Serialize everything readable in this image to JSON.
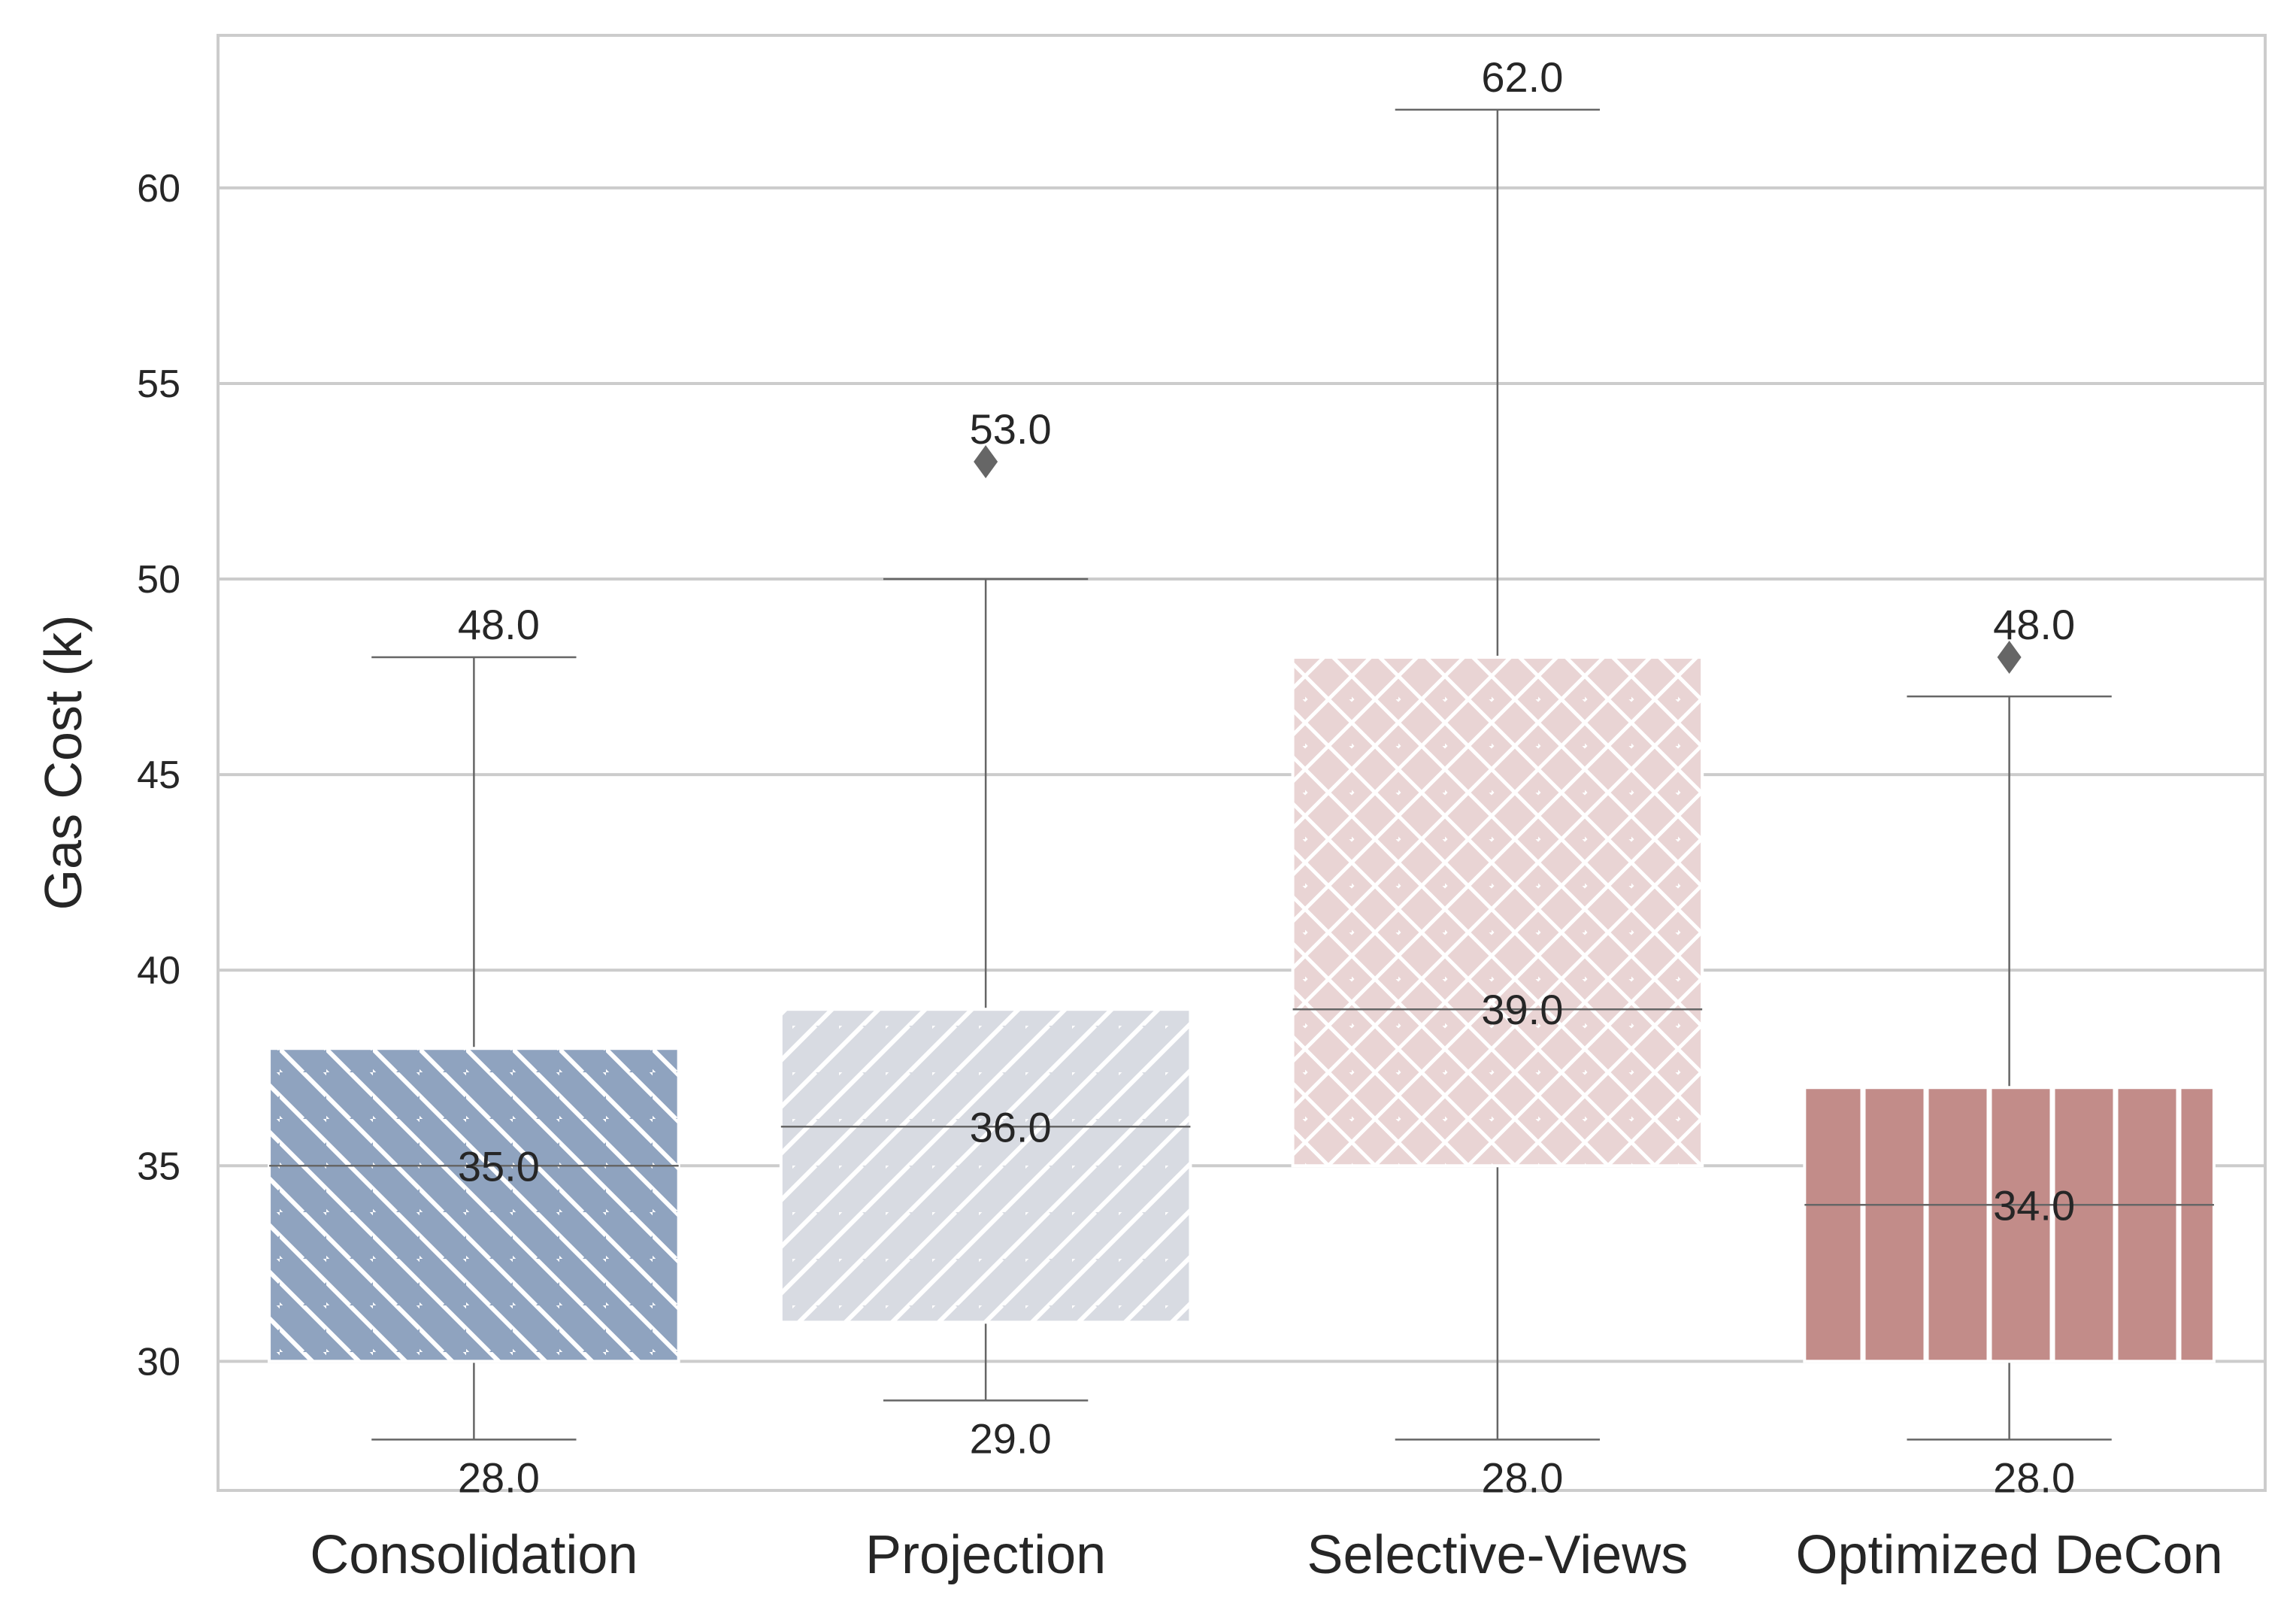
{
  "chart_data": {
    "type": "box",
    "title": "",
    "xlabel": "",
    "ylabel": "Gas Cost (k)",
    "ylim": [
      26.7,
      63.9
    ],
    "yticks": [
      30,
      35,
      40,
      45,
      50,
      55,
      60
    ],
    "grid": "horizontal",
    "legend": "none",
    "categories": [
      "Consolidation",
      "Projection",
      "Selective-Views",
      "Optimized DeCon"
    ],
    "boxes": [
      {
        "category": "Consolidation",
        "whisker_low": 28.0,
        "q1": 30.0,
        "median": 35.0,
        "q3": 38.0,
        "whisker_high": 48.0,
        "outliers": [],
        "labels": {
          "top": "48.0",
          "median": "35.0",
          "bottom": "28.0"
        },
        "color": "#8fa3bf",
        "hatch": "backslash"
      },
      {
        "category": "Projection",
        "whisker_low": 29.0,
        "q1": 31.0,
        "median": 36.0,
        "q3": 39.0,
        "whisker_high": 50.0,
        "outliers": [
          53.0
        ],
        "labels": {
          "top": "53.0",
          "median": "36.0",
          "bottom": "29.0"
        },
        "color": "#d8dbe2",
        "hatch": "slash"
      },
      {
        "category": "Selective-Views",
        "whisker_low": 28.0,
        "q1": 35.0,
        "median": 39.0,
        "q3": 48.0,
        "whisker_high": 62.0,
        "outliers": [],
        "labels": {
          "top": "62.0",
          "median": "39.0",
          "bottom": "28.0"
        },
        "color": "#e9d4d4",
        "hatch": "cross"
      },
      {
        "category": "Optimized DeCon",
        "whisker_low": 28.0,
        "q1": 30.0,
        "median": 34.0,
        "q3": 37.0,
        "whisker_high": 47.0,
        "outliers": [
          48.0
        ],
        "labels": {
          "top": "48.0",
          "median": "34.0",
          "bottom": "28.0"
        },
        "color": "#c28c89",
        "hatch": "vertical"
      }
    ]
  },
  "colors": {
    "grid": "#cccccc",
    "spine": "#cccccc",
    "whisker": "#666666",
    "text": "#262626",
    "hatch": "#ffffff"
  }
}
